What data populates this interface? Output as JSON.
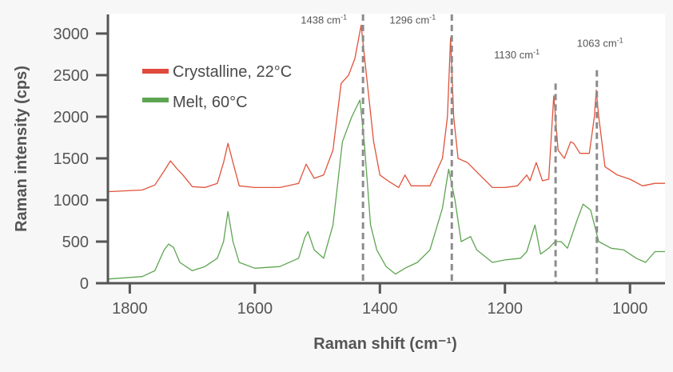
{
  "chart_data": {
    "type": "line",
    "title": "",
    "xlabel": "Raman shift (cm⁻¹)",
    "ylabel": "Raman intensity (cps)",
    "xlim": [
      1835,
      944
    ],
    "ylim": [
      0,
      3230
    ],
    "x_reversed": true,
    "grid": false,
    "legend_position": "top-left",
    "x_ticks": [
      1800,
      1600,
      1400,
      1200,
      1000
    ],
    "y_ticks": [
      0,
      500,
      1000,
      1500,
      2000,
      2500,
      3000
    ],
    "series": [
      {
        "name": "Crystalline, 22°C",
        "color": "#e0533c",
        "points": [
          [
            1835,
            1100
          ],
          [
            1780,
            1120
          ],
          [
            1760,
            1180
          ],
          [
            1745,
            1350
          ],
          [
            1735,
            1470
          ],
          [
            1725,
            1380
          ],
          [
            1715,
            1300
          ],
          [
            1700,
            1160
          ],
          [
            1680,
            1150
          ],
          [
            1660,
            1200
          ],
          [
            1650,
            1450
          ],
          [
            1643,
            1680
          ],
          [
            1635,
            1450
          ],
          [
            1625,
            1170
          ],
          [
            1600,
            1150
          ],
          [
            1560,
            1150
          ],
          [
            1530,
            1200
          ],
          [
            1518,
            1430
          ],
          [
            1505,
            1260
          ],
          [
            1490,
            1300
          ],
          [
            1475,
            1600
          ],
          [
            1462,
            2400
          ],
          [
            1450,
            2500
          ],
          [
            1440,
            2700
          ],
          [
            1430,
            3100
          ],
          [
            1420,
            2400
          ],
          [
            1410,
            1700
          ],
          [
            1400,
            1300
          ],
          [
            1385,
            1220
          ],
          [
            1370,
            1150
          ],
          [
            1360,
            1300
          ],
          [
            1350,
            1170
          ],
          [
            1320,
            1170
          ],
          [
            1300,
            1500
          ],
          [
            1292,
            2000
          ],
          [
            1287,
            2950
          ],
          [
            1282,
            2000
          ],
          [
            1275,
            1500
          ],
          [
            1260,
            1450
          ],
          [
            1240,
            1300
          ],
          [
            1220,
            1150
          ],
          [
            1200,
            1150
          ],
          [
            1180,
            1170
          ],
          [
            1165,
            1300
          ],
          [
            1160,
            1230
          ],
          [
            1150,
            1450
          ],
          [
            1140,
            1230
          ],
          [
            1130,
            1250
          ],
          [
            1122,
            2250
          ],
          [
            1115,
            1600
          ],
          [
            1105,
            1500
          ],
          [
            1095,
            1700
          ],
          [
            1090,
            1680
          ],
          [
            1080,
            1560
          ],
          [
            1065,
            1560
          ],
          [
            1057,
            2000
          ],
          [
            1054,
            2320
          ],
          [
            1050,
            2000
          ],
          [
            1040,
            1400
          ],
          [
            1020,
            1300
          ],
          [
            1000,
            1250
          ],
          [
            980,
            1170
          ],
          [
            960,
            1200
          ],
          [
            944,
            1200
          ]
        ]
      },
      {
        "name": "Melt, 60°C",
        "color": "#5ea552",
        "points": [
          [
            1835,
            50
          ],
          [
            1780,
            80
          ],
          [
            1760,
            150
          ],
          [
            1745,
            400
          ],
          [
            1738,
            470
          ],
          [
            1730,
            430
          ],
          [
            1720,
            250
          ],
          [
            1700,
            150
          ],
          [
            1680,
            200
          ],
          [
            1660,
            300
          ],
          [
            1650,
            500
          ],
          [
            1643,
            860
          ],
          [
            1635,
            500
          ],
          [
            1625,
            250
          ],
          [
            1600,
            180
          ],
          [
            1560,
            200
          ],
          [
            1530,
            300
          ],
          [
            1520,
            550
          ],
          [
            1515,
            620
          ],
          [
            1505,
            400
          ],
          [
            1490,
            300
          ],
          [
            1475,
            700
          ],
          [
            1460,
            1700
          ],
          [
            1445,
            2000
          ],
          [
            1432,
            2200
          ],
          [
            1425,
            1700
          ],
          [
            1415,
            700
          ],
          [
            1405,
            400
          ],
          [
            1390,
            200
          ],
          [
            1375,
            110
          ],
          [
            1360,
            180
          ],
          [
            1340,
            250
          ],
          [
            1320,
            400
          ],
          [
            1300,
            900
          ],
          [
            1290,
            1370
          ],
          [
            1280,
            1000
          ],
          [
            1270,
            500
          ],
          [
            1255,
            560
          ],
          [
            1245,
            400
          ],
          [
            1220,
            250
          ],
          [
            1200,
            280
          ],
          [
            1175,
            300
          ],
          [
            1165,
            380
          ],
          [
            1152,
            700
          ],
          [
            1143,
            350
          ],
          [
            1130,
            420
          ],
          [
            1120,
            500
          ],
          [
            1110,
            500
          ],
          [
            1100,
            420
          ],
          [
            1085,
            750
          ],
          [
            1075,
            950
          ],
          [
            1063,
            880
          ],
          [
            1050,
            500
          ],
          [
            1030,
            420
          ],
          [
            1010,
            400
          ],
          [
            990,
            300
          ],
          [
            975,
            250
          ],
          [
            960,
            380
          ],
          [
            944,
            380
          ]
        ]
      }
    ],
    "annotations": [
      {
        "label": "1438 cm",
        "sup": "-1",
        "x": 1427,
        "y_top": 3230,
        "label_side": "left",
        "label_y": 3120
      },
      {
        "label": "1296 cm",
        "sup": "-1",
        "x": 1285,
        "y_top": 3230,
        "label_side": "left",
        "label_y": 3120
      },
      {
        "label": "1130 cm",
        "sup": "-1",
        "x": 1119,
        "y_top": 2400,
        "label_side": "left",
        "label_y": 2700
      },
      {
        "label": "1063 cm",
        "sup": "-1",
        "x": 1053,
        "y_top": 2560,
        "label_side": "center",
        "label_y": 2840
      }
    ]
  }
}
